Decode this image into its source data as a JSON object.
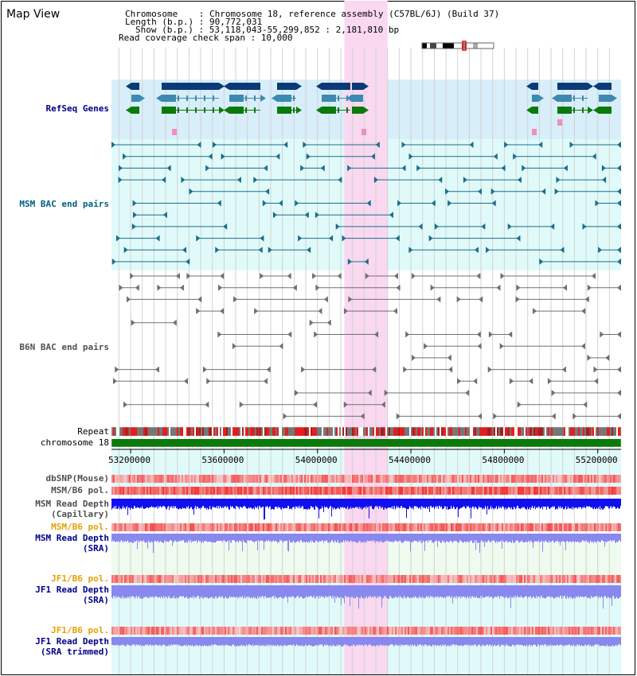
{
  "title": "Map View",
  "info": {
    "chromosome": "Chromosome    : Chromosome 18, reference assembly (C57BL/6J) (Build 37)",
    "length": "Length (b.p.) : 90,772,031",
    "show": "Show (b.p.) : 53,118,043-55,299,852 : 2,181,810 bp",
    "span": "Read coverage check span : 10,000"
  },
  "tracks": {
    "refseq": "RefSeq Genes",
    "msm_bac": "MSM BAC end pairs",
    "b6n_bac": "B6N BAC end pairs",
    "repeat": "Repeat",
    "chromosome": "chromosome 18",
    "dbsnp": "dbSNP(Mouse)",
    "msm_b6_pol_1": "MSM/B6 pol.",
    "msm_read_depth_cap_1": "MSM Read Depth",
    "msm_read_depth_cap_2": "(Capillary)",
    "msm_b6_pol_2": "MSM/B6 pol.",
    "msm_read_depth_sra_1": "MSM Read Depth",
    "msm_read_depth_sra_2": "(SRA)",
    "jf1_b6_pol_1": "JF1/B6 pol.",
    "jf1_read_depth_sra_1": "JF1 Read Depth",
    "jf1_read_depth_sra_2": "(SRA)",
    "jf1_b6_pol_2": "JF1/B6 pol.",
    "jf1_read_depth_trim_1": "JF1 Read Depth",
    "jf1_read_depth_trim_2": "(SRA trimmed)"
  },
  "axis_ticks": [
    {
      "label": "53200000",
      "value": 53200000
    },
    {
      "label": "53600000",
      "value": 53600000
    },
    {
      "label": "54000000",
      "value": 54000000
    },
    {
      "label": "54400000",
      "value": 54400000
    },
    {
      "label": "54800000",
      "value": 54800000
    },
    {
      "label": "55200000",
      "value": 55200000
    }
  ],
  "view_range": [
    53118043,
    55299852
  ],
  "highlight_range": [
    54115000,
    54300000
  ],
  "colors": {
    "highlight": "#f9d8f0",
    "refseq_bg": "#d8eefa",
    "msm_bg": "#e0fafa",
    "light_green_bg": "#eefbee",
    "navy": "#0a3a78",
    "steelblue": "#3d8ab0",
    "green": "#0a7a0a",
    "teal": "#1a6e8a",
    "gray": "#707070",
    "red": "#e02020",
    "chromosome_bar": "#0a7a0a",
    "depth_dark": "#1010ee",
    "depth_light": "#8888ee",
    "label_navy": "#000088",
    "label_orange": "#e8a000",
    "label_teal": "#006080"
  }
}
